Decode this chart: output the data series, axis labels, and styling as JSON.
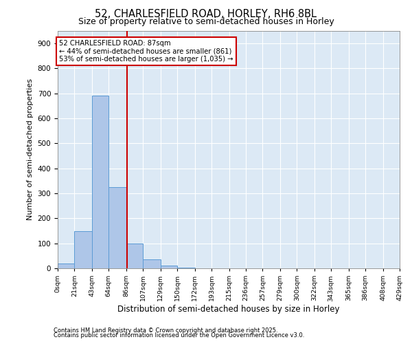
{
  "title_line1": "52, CHARLESFIELD ROAD, HORLEY, RH6 8BL",
  "title_line2": "Size of property relative to semi-detached houses in Horley",
  "xlabel": "Distribution of semi-detached houses by size in Horley",
  "ylabel": "Number of semi-detached properties",
  "footer_line1": "Contains HM Land Registry data © Crown copyright and database right 2025.",
  "footer_line2": "Contains public sector information licensed under the Open Government Licence v3.0.",
  "annotation_line1": "52 CHARLESFIELD ROAD: 87sqm",
  "annotation_line2": "← 44% of semi-detached houses are smaller (861)",
  "annotation_line3": "53% of semi-detached houses are larger (1,035) →",
  "property_size_sqm": 87,
  "bin_edges": [
    0,
    21,
    43,
    64,
    86,
    107,
    129,
    150,
    172,
    193,
    215,
    236,
    257,
    279,
    300,
    322,
    343,
    365,
    386,
    408,
    429
  ],
  "bar_values": [
    20,
    150,
    690,
    325,
    100,
    35,
    10,
    2,
    0,
    1,
    0,
    0,
    0,
    0,
    0,
    0,
    0,
    0,
    0,
    0
  ],
  "bar_color": "#aec6e8",
  "bar_edge_color": "#5b9bd5",
  "red_line_color": "#cc0000",
  "annotation_box_color": "#cc0000",
  "background_color": "#dce9f5",
  "ylim": [
    0,
    950
  ],
  "yticks": [
    0,
    100,
    200,
    300,
    400,
    500,
    600,
    700,
    800,
    900
  ],
  "tick_labels": [
    "0sqm",
    "21sqm",
    "43sqm",
    "64sqm",
    "86sqm",
    "107sqm",
    "129sqm",
    "150sqm",
    "172sqm",
    "193sqm",
    "215sqm",
    "236sqm",
    "257sqm",
    "279sqm",
    "300sqm",
    "322sqm",
    "343sqm",
    "365sqm",
    "386sqm",
    "408sqm",
    "429sqm"
  ]
}
